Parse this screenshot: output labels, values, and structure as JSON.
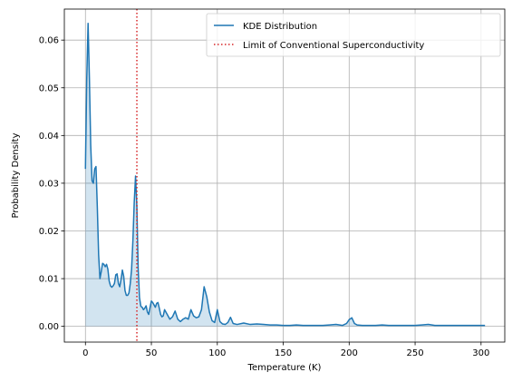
{
  "chart_data": {
    "type": "area",
    "xlabel": "Temperature (K)",
    "ylabel": "Probability Density",
    "xlim": [
      -16,
      318
    ],
    "ylim": [
      -0.0033,
      0.0665
    ],
    "xticks": [
      0,
      50,
      100,
      150,
      200,
      250,
      300
    ],
    "yticks": [
      0.0,
      0.01,
      0.02,
      0.03,
      0.04,
      0.05,
      0.06
    ],
    "ytick_labels": [
      "0.00",
      "0.01",
      "0.02",
      "0.03",
      "0.04",
      "0.05",
      "0.06"
    ],
    "grid": true,
    "legend_position": "top-right",
    "series": [
      {
        "name": "KDE Distribution",
        "color": "#1f77b4",
        "fill": true,
        "x": [
          0,
          1,
          2,
          3,
          4,
          5,
          6,
          7,
          8,
          9,
          10,
          11,
          12,
          13,
          14,
          15,
          16,
          17,
          18,
          19,
          20,
          21,
          22,
          23,
          24,
          25,
          26,
          27,
          28,
          29,
          30,
          31,
          32,
          33,
          34,
          35,
          36,
          37,
          38,
          39,
          40,
          41,
          42,
          43,
          44,
          45,
          46,
          47,
          48,
          49,
          50,
          51,
          52,
          53,
          54,
          55,
          56,
          57,
          58,
          59,
          60,
          62,
          64,
          66,
          68,
          70,
          72,
          74,
          76,
          78,
          80,
          82,
          84,
          86,
          88,
          90,
          92,
          94,
          96,
          98,
          100,
          102,
          104,
          106,
          108,
          110,
          112,
          115,
          120,
          125,
          130,
          135,
          140,
          145,
          150,
          155,
          160,
          165,
          170,
          175,
          180,
          185,
          190,
          195,
          198,
          200,
          202,
          204,
          206,
          210,
          215,
          220,
          225,
          230,
          235,
          240,
          245,
          250,
          255,
          260,
          265,
          270,
          275,
          280,
          285,
          290,
          295,
          300,
          303
        ],
        "y": [
          0.033,
          0.052,
          0.0635,
          0.052,
          0.038,
          0.0305,
          0.03,
          0.033,
          0.0335,
          0.025,
          0.015,
          0.01,
          0.0115,
          0.0132,
          0.013,
          0.0125,
          0.013,
          0.012,
          0.0095,
          0.0085,
          0.0082,
          0.0085,
          0.009,
          0.0108,
          0.011,
          0.009,
          0.0083,
          0.0098,
          0.0118,
          0.0105,
          0.0075,
          0.0065,
          0.0065,
          0.007,
          0.009,
          0.012,
          0.018,
          0.026,
          0.0315,
          0.025,
          0.012,
          0.006,
          0.0042,
          0.004,
          0.0035,
          0.0038,
          0.0043,
          0.003,
          0.0025,
          0.004,
          0.0053,
          0.005,
          0.0045,
          0.004,
          0.0048,
          0.005,
          0.0038,
          0.0025,
          0.002,
          0.0022,
          0.0035,
          0.0025,
          0.0015,
          0.002,
          0.0032,
          0.0015,
          0.001,
          0.0015,
          0.0018,
          0.0015,
          0.0035,
          0.0022,
          0.0018,
          0.002,
          0.0035,
          0.0083,
          0.0062,
          0.003,
          0.0012,
          0.0008,
          0.0035,
          0.001,
          0.0005,
          0.0004,
          0.0008,
          0.0019,
          0.0006,
          0.0004,
          0.0007,
          0.0004,
          0.0005,
          0.0004,
          0.0003,
          0.0003,
          0.0002,
          0.0002,
          0.0003,
          0.0002,
          0.0002,
          0.0002,
          0.0002,
          0.0003,
          0.0004,
          0.0002,
          0.0006,
          0.0014,
          0.0018,
          0.0006,
          0.0003,
          0.0002,
          0.0002,
          0.0002,
          0.0003,
          0.0002,
          0.0002,
          0.0002,
          0.0002,
          0.0002,
          0.0003,
          0.0004,
          0.0002,
          0.0002,
          0.0002,
          0.0002,
          0.0002,
          0.0002,
          0.0002,
          0.0002,
          0.0002
        ]
      }
    ],
    "vlines": [
      {
        "name": "Limit of Conventional Superconductivity",
        "x": 39,
        "color": "#d62728",
        "style": "dotted"
      }
    ]
  }
}
